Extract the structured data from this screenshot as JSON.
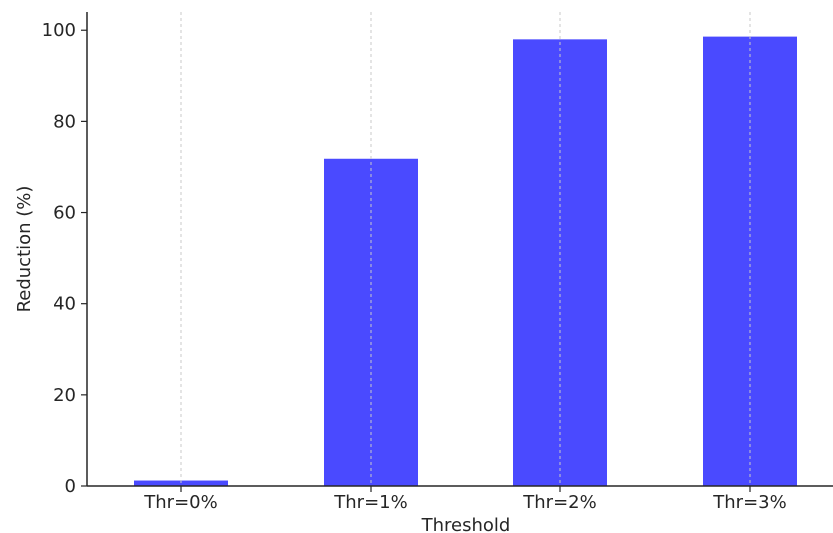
{
  "chart_data": {
    "type": "bar",
    "title": "",
    "xlabel": "Threshold",
    "ylabel": "Reduction (%)",
    "categories": [
      "Thr=0%",
      "Thr=1%",
      "Thr=2%",
      "Thr=3%"
    ],
    "values": [
      1.2,
      71.8,
      98.0,
      98.6
    ],
    "ylim": [
      0,
      104
    ],
    "yticks": [
      0,
      20,
      40,
      60,
      80,
      100
    ],
    "grid": "x-dashed",
    "bar_color": "#4a4aff",
    "grid_color": "#c8c8c8",
    "axis_color": "#262626"
  }
}
